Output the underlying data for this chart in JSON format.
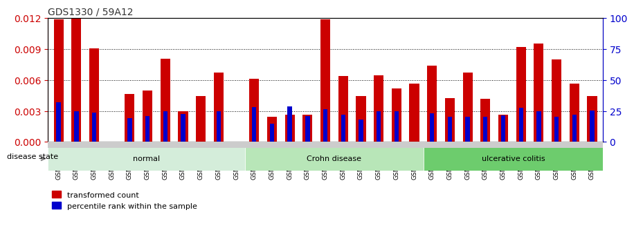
{
  "title": "GDS1330 / 59A12",
  "samples": [
    "GSM29595",
    "GSM29596",
    "GSM29597",
    "GSM29598",
    "GSM29599",
    "GSM29600",
    "GSM29601",
    "GSM29602",
    "GSM29603",
    "GSM29604",
    "GSM29605",
    "GSM29606",
    "GSM29607",
    "GSM29608",
    "GSM29609",
    "GSM29610",
    "GSM29611",
    "GSM29612",
    "GSM29613",
    "GSM29614",
    "GSM29615",
    "GSM29616",
    "GSM29617",
    "GSM29618",
    "GSM29619",
    "GSM29620",
    "GSM29621",
    "GSM29622",
    "GSM29623",
    "GSM29624",
    "GSM29625"
  ],
  "transformed_count": [
    0.01185,
    0.01195,
    0.00905,
    0.0,
    0.00465,
    0.00495,
    0.00805,
    0.00295,
    0.00445,
    0.0067,
    0.0,
    0.0061,
    0.00245,
    0.0026,
    0.00265,
    0.01185,
    0.00635,
    0.00445,
    0.00645,
    0.0052,
    0.00565,
    0.0074,
    0.00425,
    0.0067,
    0.0042,
    0.00265,
    0.0092,
    0.0095,
    0.008,
    0.00565,
    0.00445
  ],
  "percentile_rank": [
    0.00385,
    0.00295,
    0.00285,
    0.0,
    0.0023,
    0.0025,
    0.00295,
    0.0027,
    0.0,
    0.00295,
    0.0,
    0.0034,
    0.00175,
    0.00345,
    0.0025,
    0.00315,
    0.0026,
    0.00215,
    0.003,
    0.00295,
    0.0,
    0.00275,
    0.0024,
    0.00245,
    0.00245,
    0.00255,
    0.0033,
    0.003,
    0.0024,
    0.00265,
    0.00305
  ],
  "groups": [
    {
      "label": "normal",
      "start": 0,
      "end": 10,
      "color": "#d4edda"
    },
    {
      "label": "Crohn disease",
      "start": 11,
      "end": 20,
      "color": "#b8e6b8"
    },
    {
      "label": "ulcerative colitis",
      "start": 21,
      "end": 30,
      "color": "#6dcc6d"
    }
  ],
  "ylim": [
    0,
    0.012
  ],
  "yticks": [
    0,
    0.003,
    0.006,
    0.009,
    0.012
  ],
  "y2ticks": [
    0,
    25,
    50,
    75,
    100
  ],
  "bar_color": "#cc0000",
  "percentile_color": "#0000cc",
  "background_color": "#ffffff",
  "title_color": "#333333",
  "ylabel_color": "#cc0000",
  "y2label_color": "#0000cc",
  "legend_items": [
    "transformed count",
    "percentile rank within the sample"
  ],
  "disease_state_label": "disease state"
}
